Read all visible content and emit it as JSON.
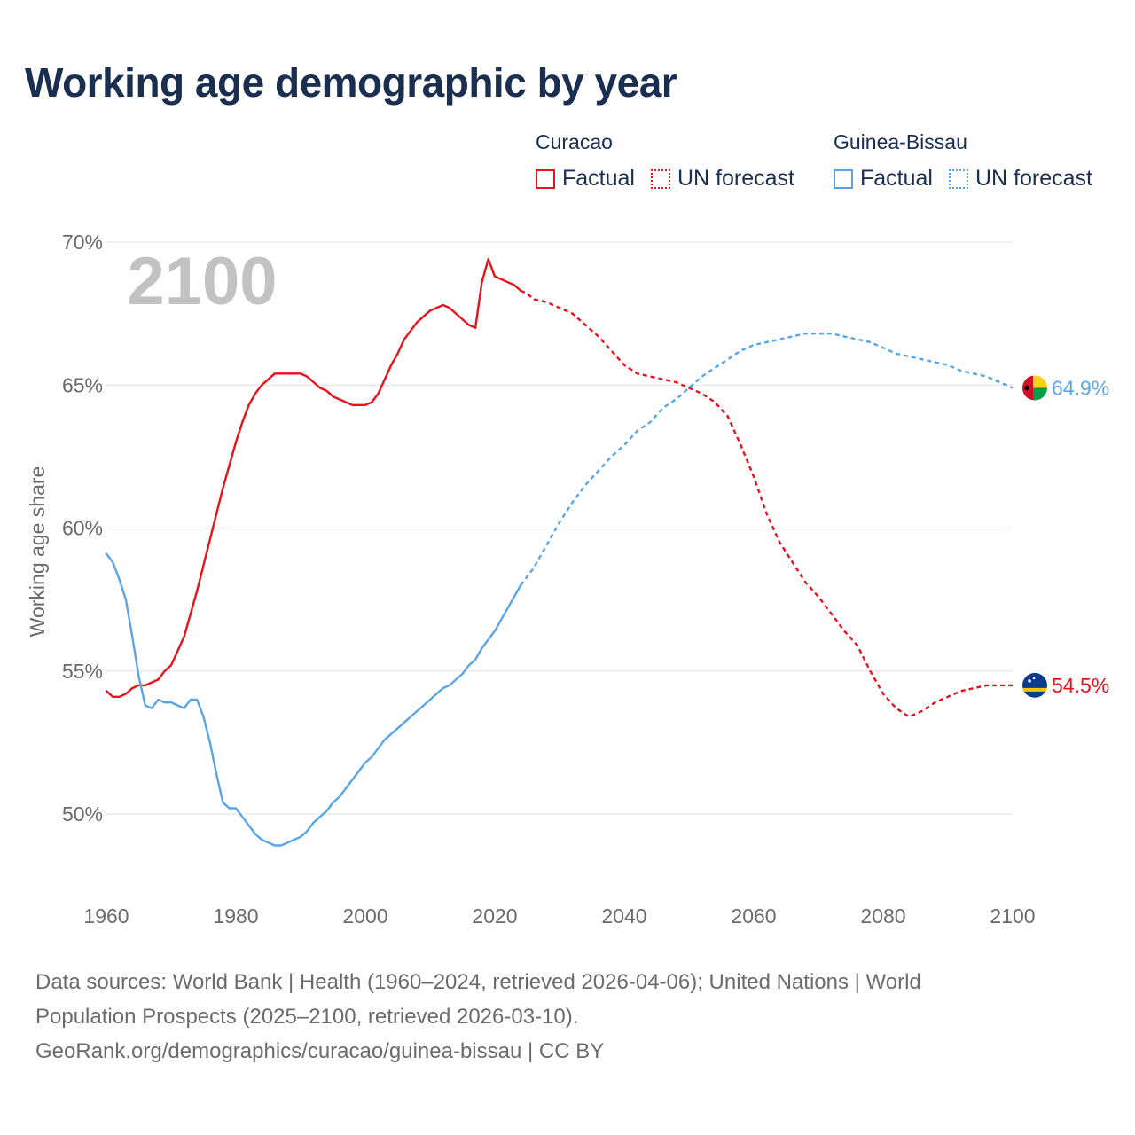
{
  "title": "Working age demographic by year",
  "legend": {
    "groups": [
      {
        "country": "Curacao",
        "color": "#e8111c",
        "items": [
          {
            "label": "Factual",
            "style": "solid"
          },
          {
            "label": "UN forecast",
            "style": "dotted"
          }
        ]
      },
      {
        "country": "Guinea-Bissau",
        "color": "#5aa5e6",
        "items": [
          {
            "label": "Factual",
            "style": "solid"
          },
          {
            "label": "UN forecast",
            "style": "dotted"
          }
        ]
      }
    ]
  },
  "footer": {
    "line1": "Data sources: World Bank | Health (1960–2024, retrieved 2026-04-06); United Nations | World",
    "line2": "Population Prospects (2025–2100, retrieved 2026-03-10).",
    "line3": "GeoRank.org/demographics/curacao/guinea-bissau | CC BY"
  },
  "chart_data": {
    "type": "line",
    "title": "Working age demographic by year",
    "year_overlay": "2100",
    "xlabel": "",
    "ylabel": "Working age share",
    "xlim": [
      1960,
      2100
    ],
    "ylim": [
      47.5,
      70
    ],
    "x_ticks": [
      1960,
      1980,
      2000,
      2020,
      2040,
      2060,
      2080,
      2100
    ],
    "x_tick_labels": [
      "1960",
      "1980",
      "2000",
      "2020",
      "2040",
      "2060",
      "2080",
      "2100"
    ],
    "y_ticks": [
      50,
      55,
      60,
      65,
      70
    ],
    "y_tick_labels": [
      "50%",
      "55%",
      "60%",
      "65%",
      "70%"
    ],
    "grid": true,
    "series": [
      {
        "name": "Curacao",
        "color": "#e8111c",
        "end_label": "54.5%",
        "flag": {
          "name": "curacao-flag-icon",
          "base": "#0b3b8f",
          "stripe": "#f5c400",
          "star": "#ffffff"
        },
        "factual": [
          [
            1960,
            54.3
          ],
          [
            1961,
            54.1
          ],
          [
            1962,
            54.1
          ],
          [
            1963,
            54.2
          ],
          [
            1964,
            54.4
          ],
          [
            1965,
            54.5
          ],
          [
            1966,
            54.5
          ],
          [
            1967,
            54.6
          ],
          [
            1968,
            54.7
          ],
          [
            1969,
            55.0
          ],
          [
            1970,
            55.2
          ],
          [
            1971,
            55.7
          ],
          [
            1972,
            56.2
          ],
          [
            1973,
            57.0
          ],
          [
            1974,
            57.8
          ],
          [
            1975,
            58.7
          ],
          [
            1976,
            59.6
          ],
          [
            1977,
            60.5
          ],
          [
            1978,
            61.4
          ],
          [
            1979,
            62.2
          ],
          [
            1980,
            63.0
          ],
          [
            1981,
            63.7
          ],
          [
            1982,
            64.3
          ],
          [
            1983,
            64.7
          ],
          [
            1984,
            65.0
          ],
          [
            1985,
            65.2
          ],
          [
            1986,
            65.4
          ],
          [
            1987,
            65.4
          ],
          [
            1988,
            65.4
          ],
          [
            1989,
            65.4
          ],
          [
            1990,
            65.4
          ],
          [
            1991,
            65.3
          ],
          [
            1992,
            65.1
          ],
          [
            1993,
            64.9
          ],
          [
            1994,
            64.8
          ],
          [
            1995,
            64.6
          ],
          [
            1996,
            64.5
          ],
          [
            1997,
            64.4
          ],
          [
            1998,
            64.3
          ],
          [
            1999,
            64.3
          ],
          [
            2000,
            64.3
          ],
          [
            2001,
            64.4
          ],
          [
            2002,
            64.7
          ],
          [
            2003,
            65.2
          ],
          [
            2004,
            65.7
          ],
          [
            2005,
            66.1
          ],
          [
            2006,
            66.6
          ],
          [
            2007,
            66.9
          ],
          [
            2008,
            67.2
          ],
          [
            2009,
            67.4
          ],
          [
            2010,
            67.6
          ],
          [
            2011,
            67.7
          ],
          [
            2012,
            67.8
          ],
          [
            2013,
            67.7
          ],
          [
            2014,
            67.5
          ],
          [
            2015,
            67.3
          ],
          [
            2016,
            67.1
          ],
          [
            2017,
            67.0
          ],
          [
            2018,
            68.6
          ],
          [
            2019,
            69.4
          ],
          [
            2020,
            68.8
          ],
          [
            2021,
            68.7
          ],
          [
            2022,
            68.6
          ],
          [
            2023,
            68.5
          ],
          [
            2024,
            68.3
          ]
        ],
        "forecast": [
          [
            2024,
            68.3
          ],
          [
            2025,
            68.2
          ],
          [
            2026,
            68.0
          ],
          [
            2028,
            67.9
          ],
          [
            2030,
            67.7
          ],
          [
            2032,
            67.5
          ],
          [
            2034,
            67.1
          ],
          [
            2036,
            66.7
          ],
          [
            2038,
            66.2
          ],
          [
            2040,
            65.7
          ],
          [
            2042,
            65.4
          ],
          [
            2044,
            65.3
          ],
          [
            2046,
            65.2
          ],
          [
            2048,
            65.1
          ],
          [
            2050,
            64.9
          ],
          [
            2052,
            64.7
          ],
          [
            2054,
            64.4
          ],
          [
            2056,
            63.9
          ],
          [
            2058,
            62.9
          ],
          [
            2060,
            61.8
          ],
          [
            2062,
            60.5
          ],
          [
            2064,
            59.5
          ],
          [
            2066,
            58.8
          ],
          [
            2068,
            58.1
          ],
          [
            2070,
            57.6
          ],
          [
            2072,
            57.0
          ],
          [
            2074,
            56.4
          ],
          [
            2076,
            55.9
          ],
          [
            2078,
            55.0
          ],
          [
            2080,
            54.2
          ],
          [
            2082,
            53.7
          ],
          [
            2084,
            53.4
          ],
          [
            2086,
            53.6
          ],
          [
            2088,
            53.9
          ],
          [
            2090,
            54.1
          ],
          [
            2092,
            54.3
          ],
          [
            2094,
            54.4
          ],
          [
            2096,
            54.5
          ],
          [
            2098,
            54.5
          ],
          [
            2100,
            54.5
          ]
        ]
      },
      {
        "name": "Guinea-Bissau",
        "color": "#5aa5e6",
        "end_label": "64.9%",
        "flag": {
          "name": "guinea-bissau-flag-icon",
          "left": "#ce1126",
          "top": "#fcd116",
          "bottom": "#009e49",
          "star": "#000000"
        },
        "factual": [
          [
            1960,
            59.1
          ],
          [
            1961,
            58.8
          ],
          [
            1962,
            58.2
          ],
          [
            1963,
            57.5
          ],
          [
            1964,
            56.2
          ],
          [
            1965,
            54.8
          ],
          [
            1966,
            53.8
          ],
          [
            1967,
            53.7
          ],
          [
            1968,
            54.0
          ],
          [
            1969,
            53.9
          ],
          [
            1970,
            53.9
          ],
          [
            1971,
            53.8
          ],
          [
            1972,
            53.7
          ],
          [
            1973,
            54.0
          ],
          [
            1974,
            54.0
          ],
          [
            1975,
            53.4
          ],
          [
            1976,
            52.5
          ],
          [
            1977,
            51.4
          ],
          [
            1978,
            50.4
          ],
          [
            1979,
            50.2
          ],
          [
            1980,
            50.2
          ],
          [
            1981,
            49.9
          ],
          [
            1982,
            49.6
          ],
          [
            1983,
            49.3
          ],
          [
            1984,
            49.1
          ],
          [
            1985,
            49.0
          ],
          [
            1986,
            48.9
          ],
          [
            1987,
            48.9
          ],
          [
            1988,
            49.0
          ],
          [
            1989,
            49.1
          ],
          [
            1990,
            49.2
          ],
          [
            1991,
            49.4
          ],
          [
            1992,
            49.7
          ],
          [
            1993,
            49.9
          ],
          [
            1994,
            50.1
          ],
          [
            1995,
            50.4
          ],
          [
            1996,
            50.6
          ],
          [
            1997,
            50.9
          ],
          [
            1998,
            51.2
          ],
          [
            1999,
            51.5
          ],
          [
            2000,
            51.8
          ],
          [
            2001,
            52.0
          ],
          [
            2002,
            52.3
          ],
          [
            2003,
            52.6
          ],
          [
            2004,
            52.8
          ],
          [
            2005,
            53.0
          ],
          [
            2006,
            53.2
          ],
          [
            2007,
            53.4
          ],
          [
            2008,
            53.6
          ],
          [
            2009,
            53.8
          ],
          [
            2010,
            54.0
          ],
          [
            2011,
            54.2
          ],
          [
            2012,
            54.4
          ],
          [
            2013,
            54.5
          ],
          [
            2014,
            54.7
          ],
          [
            2015,
            54.9
          ],
          [
            2016,
            55.2
          ],
          [
            2017,
            55.4
          ],
          [
            2018,
            55.8
          ],
          [
            2019,
            56.1
          ],
          [
            2020,
            56.4
          ],
          [
            2021,
            56.8
          ],
          [
            2022,
            57.2
          ],
          [
            2023,
            57.6
          ],
          [
            2024,
            58.0
          ]
        ],
        "forecast": [
          [
            2024,
            58.0
          ],
          [
            2026,
            58.6
          ],
          [
            2028,
            59.4
          ],
          [
            2030,
            60.2
          ],
          [
            2032,
            60.9
          ],
          [
            2034,
            61.5
          ],
          [
            2036,
            62.0
          ],
          [
            2038,
            62.5
          ],
          [
            2040,
            62.9
          ],
          [
            2042,
            63.4
          ],
          [
            2044,
            63.7
          ],
          [
            2046,
            64.2
          ],
          [
            2048,
            64.5
          ],
          [
            2050,
            64.9
          ],
          [
            2052,
            65.3
          ],
          [
            2054,
            65.6
          ],
          [
            2056,
            65.9
          ],
          [
            2058,
            66.2
          ],
          [
            2060,
            66.4
          ],
          [
            2062,
            66.5
          ],
          [
            2064,
            66.6
          ],
          [
            2066,
            66.7
          ],
          [
            2068,
            66.8
          ],
          [
            2070,
            66.8
          ],
          [
            2072,
            66.8
          ],
          [
            2074,
            66.7
          ],
          [
            2076,
            66.6
          ],
          [
            2078,
            66.5
          ],
          [
            2080,
            66.3
          ],
          [
            2082,
            66.1
          ],
          [
            2084,
            66.0
          ],
          [
            2086,
            65.9
          ],
          [
            2088,
            65.8
          ],
          [
            2090,
            65.7
          ],
          [
            2092,
            65.5
          ],
          [
            2094,
            65.4
          ],
          [
            2096,
            65.3
          ],
          [
            2098,
            65.1
          ],
          [
            2100,
            64.9
          ]
        ]
      }
    ]
  }
}
